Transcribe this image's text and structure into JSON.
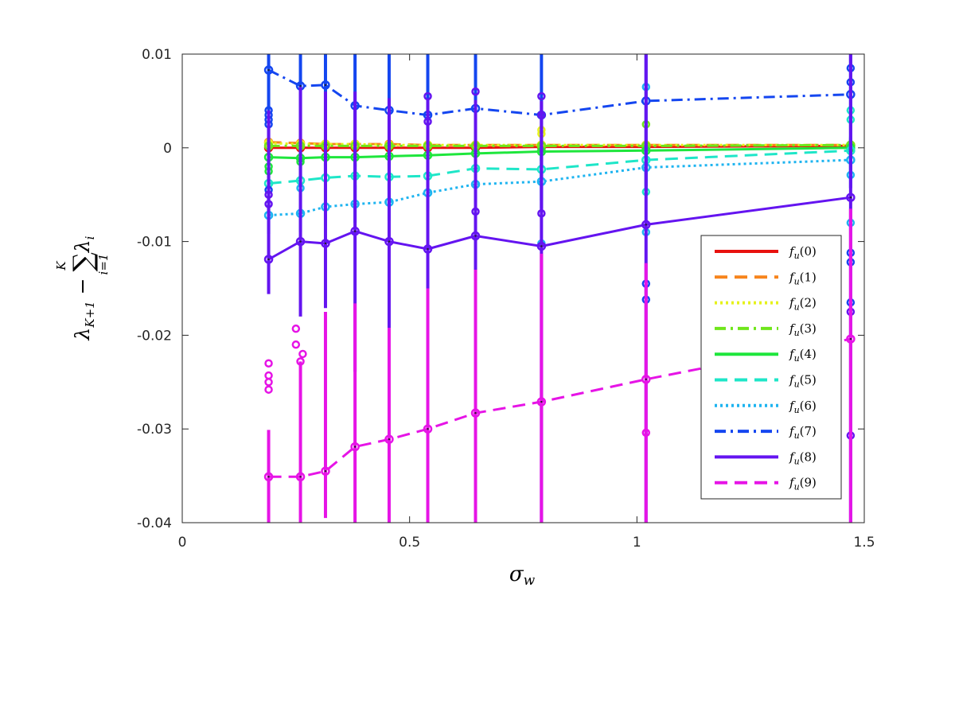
{
  "chart_data": {
    "type": "line",
    "xlabel": "σ_w",
    "ylabel": "λ_{K+1} − Σ_{i=1}^{K} λ_i",
    "xlim": [
      0,
      1.5
    ],
    "ylim": [
      -0.04,
      0.01
    ],
    "x_ticks": [
      "0",
      "0.5",
      "1",
      "1.5"
    ],
    "y_ticks": [
      "-0.04",
      "-0.03",
      "-0.02",
      "-0.01",
      "0",
      "0.01"
    ],
    "grid": false,
    "legend_position": "right",
    "x": [
      0.19,
      0.26,
      0.315,
      0.38,
      0.455,
      0.54,
      0.645,
      0.79,
      1.02,
      1.47
    ],
    "series": [
      {
        "name": "f_u(0)",
        "color": "#e8110e",
        "dash": "solid",
        "values": [
          0.0,
          0.0,
          0.0,
          0.0,
          0.0,
          0.0,
          0.0,
          0.0001,
          0.0001,
          0.0002
        ],
        "err_low": [
          0.0003,
          0.0003,
          0.0003,
          0.0003,
          0.0003,
          0.0003,
          0.0003,
          0.0003,
          0.0003,
          0.0003
        ],
        "err_high": [
          0.0003,
          0.0003,
          0.0003,
          0.0003,
          0.0003,
          0.0003,
          0.0003,
          0.0003,
          0.0003,
          0.0003
        ],
        "outliers": []
      },
      {
        "name": "f_u(1)",
        "color": "#f7841b",
        "dash": "dash",
        "values": [
          0.0006,
          0.0005,
          0.0004,
          0.0004,
          0.0004,
          0.0003,
          0.0003,
          0.0003,
          0.0003,
          0.0003
        ],
        "err_low": [
          0.0004,
          0.0004,
          0.0004,
          0.0004,
          0.0004,
          0.0004,
          0.0004,
          0.0004,
          0.0004,
          0.0004
        ],
        "err_high": [
          0.0004,
          0.0004,
          0.0004,
          0.0004,
          0.0004,
          0.0004,
          0.0004,
          0.0004,
          0.0004,
          0.0004
        ],
        "outliers": []
      },
      {
        "name": "f_u(2)",
        "color": "#e6f21b",
        "dash": "dot",
        "values": [
          0.0005,
          0.0004,
          0.0004,
          0.0004,
          0.0003,
          0.0003,
          0.0003,
          0.0003,
          0.0003,
          0.0003
        ],
        "err_low": [
          0.0005,
          0.0005,
          0.0005,
          0.0005,
          0.0005,
          0.0005,
          0.0005,
          0.0005,
          0.0005,
          0.0005
        ],
        "err_high": [
          0.0005,
          0.0005,
          0.0005,
          0.0005,
          0.0005,
          0.0005,
          0.0005,
          0.0005,
          0.0005,
          0.0005
        ],
        "outliers": [
          [
            0.79,
            0.0015
          ],
          [
            0.79,
            0.0019
          ]
        ]
      },
      {
        "name": "f_u(3)",
        "color": "#6fe61b",
        "dash": "dashdot",
        "values": [
          0.0002,
          0.0002,
          0.0002,
          0.0002,
          0.0002,
          0.0002,
          0.0002,
          0.0002,
          0.0002,
          0.0003
        ],
        "err_low": [
          0.0005,
          0.0005,
          0.0005,
          0.0005,
          0.0005,
          0.0005,
          0.0005,
          0.0005,
          0.0005,
          0.0005
        ],
        "err_high": [
          0.0005,
          0.0005,
          0.0005,
          0.0005,
          0.0005,
          0.0005,
          0.0005,
          0.0005,
          0.0005,
          0.0005
        ],
        "outliers": [
          [
            1.02,
            0.0025
          ]
        ]
      },
      {
        "name": "f_u(4)",
        "color": "#1ee63c",
        "dash": "solid",
        "values": [
          -0.001,
          -0.0011,
          -0.001,
          -0.001,
          -0.0009,
          -0.0008,
          -0.0006,
          -0.0004,
          -0.0003,
          0.0
        ],
        "err_low": [
          0.001,
          0.001,
          0.001,
          0.001,
          0.001,
          0.001,
          0.001,
          0.001,
          0.001,
          0.001
        ],
        "err_high": [
          0.001,
          0.001,
          0.001,
          0.001,
          0.001,
          0.001,
          0.001,
          0.001,
          0.001,
          0.001
        ],
        "outliers": [
          [
            0.19,
            -0.002
          ],
          [
            0.19,
            -0.0025
          ],
          [
            0.26,
            -0.0015
          ]
        ]
      },
      {
        "name": "f_u(5)",
        "color": "#1ee6c8",
        "dash": "dash",
        "values": [
          -0.0038,
          -0.0035,
          -0.0032,
          -0.003,
          -0.0031,
          -0.003,
          -0.0022,
          -0.0023,
          -0.0013,
          -0.0003
        ],
        "err_low": [
          0.0015,
          0.0015,
          0.0015,
          0.0015,
          0.0015,
          0.0015,
          0.0015,
          0.0015,
          0.0015,
          0.0015
        ],
        "err_high": [
          0.0015,
          0.0015,
          0.0015,
          0.0015,
          0.0015,
          0.0015,
          0.0015,
          0.0015,
          0.0015,
          0.0015
        ],
        "outliers": [
          [
            1.02,
            -0.0047
          ],
          [
            1.47,
            0.004
          ],
          [
            1.47,
            0.003
          ]
        ]
      },
      {
        "name": "f_u(6)",
        "color": "#1eb4f0",
        "dash": "dot",
        "values": [
          -0.0072,
          -0.007,
          -0.0063,
          -0.006,
          -0.0058,
          -0.0048,
          -0.0039,
          -0.0036,
          -0.0021,
          -0.0013
        ],
        "err_low": [
          0.002,
          0.002,
          0.002,
          0.002,
          0.002,
          0.002,
          0.002,
          0.002,
          0.002,
          0.002
        ],
        "err_high": [
          0.002,
          0.002,
          0.002,
          0.002,
          0.002,
          0.002,
          0.002,
          0.002,
          0.002,
          0.002
        ],
        "outliers": [
          [
            0.26,
            -0.0043
          ],
          [
            0.79,
            -0.0102
          ],
          [
            1.02,
            -0.009
          ],
          [
            1.02,
            0.0065
          ],
          [
            1.47,
            -0.0029
          ],
          [
            1.47,
            -0.008
          ]
        ]
      },
      {
        "name": "f_u(7)",
        "color": "#1446f0",
        "dash": "dashdot",
        "values": [
          0.0083,
          0.0066,
          0.0067,
          0.0045,
          0.004,
          0.0035,
          0.0042,
          0.0035,
          0.005,
          0.0057
        ],
        "err_low": [
          0.01,
          0.01,
          0.01,
          0.01,
          0.01,
          0.01,
          0.01,
          0.01,
          0.01,
          0.01
        ],
        "err_high": [
          0.01,
          0.01,
          0.01,
          0.01,
          0.01,
          0.01,
          0.01,
          0.01,
          0.01,
          0.01
        ],
        "outliers": [
          [
            0.19,
            0.004
          ],
          [
            0.19,
            0.0035
          ],
          [
            0.19,
            0.003
          ],
          [
            0.19,
            0.0025
          ],
          [
            0.19,
            -0.0045
          ],
          [
            1.02,
            -0.0145
          ],
          [
            1.02,
            -0.0162
          ],
          [
            1.47,
            -0.0112
          ],
          [
            1.47,
            -0.0122
          ],
          [
            1.47,
            -0.0165
          ],
          [
            1.47,
            0.0085
          ],
          [
            1.47,
            0.007
          ]
        ]
      },
      {
        "name": "f_u(8)",
        "color": "#6414f0",
        "dash": "solid",
        "values": [
          -0.0119,
          -0.01,
          -0.0102,
          -0.0089,
          -0.01,
          -0.0108,
          -0.0094,
          -0.0105,
          -0.0082,
          -0.0053
        ],
        "err_low": [
          0.0037,
          0.008,
          0.0069,
          0.015,
          0.0092,
          0.0042,
          0.0048,
          0.04,
          0.04,
          0.04
        ],
        "err_high": [
          0.0159,
          0.0165,
          0.0162,
          0.0149,
          0.0153,
          0.0159,
          0.0145,
          0.0155,
          0.0182,
          0.0153
        ],
        "outliers": [
          [
            0.19,
            -0.005
          ],
          [
            0.19,
            -0.006
          ],
          [
            0.54,
            0.0055
          ],
          [
            0.54,
            0.0028
          ],
          [
            0.645,
            0.006
          ],
          [
            0.645,
            -0.0068
          ],
          [
            0.79,
            0.0035
          ],
          [
            0.79,
            0.0055
          ],
          [
            0.79,
            -0.007
          ],
          [
            1.47,
            -0.0175
          ],
          [
            1.47,
            -0.0307
          ]
        ]
      },
      {
        "name": "f_u(9)",
        "color": "#e614e6",
        "dash": "dash",
        "values": [
          -0.0351,
          -0.0351,
          -0.0345,
          -0.0319,
          -0.0311,
          -0.03,
          -0.0283,
          -0.0271,
          -0.0247,
          -0.0204
        ],
        "err_low": [
          0.005,
          0.005,
          0.005,
          0.0081,
          0.0089,
          0.01,
          0.0117,
          0.0129,
          0.0153,
          0.0196
        ],
        "err_high": [
          0.005,
          0.0123,
          0.017,
          0.0153,
          0.0119,
          0.015,
          0.0153,
          0.0158,
          0.0124,
          0.0139
        ],
        "outliers": [
          [
            0.19,
            -0.023
          ],
          [
            0.19,
            -0.0243
          ],
          [
            0.19,
            -0.025
          ],
          [
            0.19,
            -0.0258
          ],
          [
            0.25,
            -0.0193
          ],
          [
            0.25,
            -0.021
          ],
          [
            0.26,
            -0.0228
          ],
          [
            0.265,
            -0.022
          ],
          [
            1.02,
            -0.0304
          ]
        ]
      }
    ]
  }
}
